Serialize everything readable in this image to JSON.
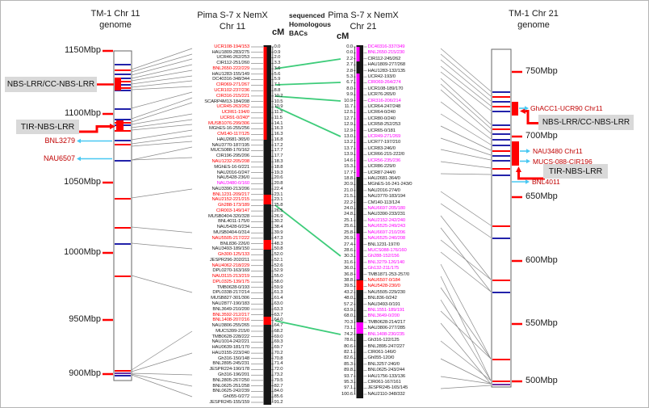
{
  "titles": {
    "left_genome": [
      "TM-1 Chr 11",
      "genome"
    ],
    "chr11": [
      "Pima S-7 x NemX",
      "Chr 11"
    ],
    "chr21": [
      "Pima S-7 x NemX",
      "Chr 21"
    ],
    "right_genome": [
      "TM-1 Chr 21",
      "genome"
    ],
    "green_note": [
      "sequenced",
      "Homologous",
      "BACs"
    ],
    "cm": "cM"
  },
  "left_scale_labels": [
    "1150Mbp",
    "1100Mbp",
    "1050Mbp",
    "1000Mbp",
    "950Mbp",
    "900Mbp"
  ],
  "right_scale_labels": [
    "750Mbp",
    "700Mbp",
    "650Mbp",
    "600Mbp",
    "550Mbp",
    "500Mbp"
  ],
  "annotations": {
    "left": {
      "nbs": "NBS-LRR/CC-NBS-LRR",
      "tir": "TIR-NBS-LRR",
      "bnl3279": "BNL3279",
      "nau6507": "NAU6507"
    },
    "right": {
      "ghacc1": "GhACC1-UCR90 Chr11",
      "nbs": "NBS-LRR/CC-NBS-LRR",
      "nau3480": "NAU3480 Chr11",
      "mucs088": "MUCS-088-CIR196",
      "tir": "TIR-NBS-LRR",
      "bnl4011": "BNL4011"
    }
  },
  "colors": {
    "red": "#FF0000",
    "magenta": "#FF00FF",
    "black": "#1A1A1A",
    "dark_red": "#C00000",
    "green": "#2FBE79",
    "cyan": "#49C8F2",
    "blue": "#2222AA",
    "purple": "#7030A0",
    "gray_line": "#8a8a8a"
  },
  "chr11_markers": [
    {
      "name": "UCR108-194/153",
      "cm": "0.0",
      "color": "red"
    },
    {
      "name": "HAU1809-283/275",
      "cm": "0.9",
      "color": "black"
    },
    {
      "name": "UCR46-262/253",
      "cm": "2.0",
      "color": "black"
    },
    {
      "name": "CIR112-251/260",
      "cm": "3.3",
      "color": "black"
    },
    {
      "name": "BNL2650-222/229",
      "cm": "3.6",
      "color": "red"
    },
    {
      "name": "HAU1283-155/149",
      "cm": "5.6",
      "color": "black"
    },
    {
      "name": "DC40316-348/344",
      "cm": "5.9",
      "color": "black"
    },
    {
      "name": "CIR069-271/267",
      "cm": "7.1",
      "color": "red"
    },
    {
      "name": "UCR102-237/236",
      "cm": "8.8",
      "color": "red"
    },
    {
      "name": "CIR316-215/221",
      "cm": "10.2",
      "color": "red"
    },
    {
      "name": "SCARP4M13-184/208",
      "cm": "10.5",
      "color": "black"
    },
    {
      "name": "UCR45-263/262",
      "cm": "10.9",
      "color": "red"
    },
    {
      "name": "UCR61-194/0",
      "cm": "11.3",
      "color": "red"
    },
    {
      "name": "UCR91-0/240*",
      "cm": "11.5",
      "color": "red"
    },
    {
      "name": "MUSB1076-299/306",
      "cm": "14.1",
      "color": "red"
    },
    {
      "name": "MGhES-16-255/256",
      "cm": "16.3",
      "color": "black"
    },
    {
      "name": "CM140-117/125",
      "cm": "16.3",
      "color": "red"
    },
    {
      "name": "HAU2681-365/0",
      "cm": "16.8",
      "color": "black"
    },
    {
      "name": "NAU3770-187/195",
      "cm": "17.2",
      "color": "black"
    },
    {
      "name": "MUCS088-170/162",
      "cm": "17.7",
      "color": "black"
    },
    {
      "name": "CIR196-295/206",
      "cm": "17.7",
      "color": "black"
    },
    {
      "name": "NAU1232-205/208",
      "cm": "18.3",
      "color": "red"
    },
    {
      "name": "MGhES-16-0/221",
      "cm": "18.8",
      "color": "black"
    },
    {
      "name": "NAU2016-0/247",
      "cm": "19.3",
      "color": "black"
    },
    {
      "name": "NAU5428-236/0",
      "cm": "20.6",
      "color": "black"
    },
    {
      "name": "NAU3480-0/160",
      "cm": "20.8",
      "color": "magenta"
    },
    {
      "name": "NAU3390-213/206",
      "cm": "22.4",
      "color": "black"
    },
    {
      "name": "BNL1231-209/217",
      "cm": "23.1",
      "color": "red"
    },
    {
      "name": "NAU2152-221/215",
      "cm": "23.1",
      "color": "red"
    },
    {
      "name": "Gh288-173/189",
      "cm": "25.8",
      "color": "red"
    },
    {
      "name": "CIR003-149/147",
      "cm": "26.5",
      "color": "red"
    },
    {
      "name": "MUSB0404-320/328",
      "cm": "26.9",
      "color": "black"
    },
    {
      "name": "BNL4011-175/0",
      "cm": "30.2",
      "color": "black"
    },
    {
      "name": "NAU5428-0/234",
      "cm": "38.4",
      "color": "black"
    },
    {
      "name": "MUSB0404-0/314",
      "cm": "39.9",
      "color": "black"
    },
    {
      "name": "NAU5505-217/222",
      "cm": "47.3",
      "color": "red"
    },
    {
      "name": "BNL836-226/0",
      "cm": "48.3",
      "color": "black"
    },
    {
      "name": "NAU3493-189/150",
      "cm": "50.8",
      "color": "black"
    },
    {
      "name": "Gh300-125/133",
      "cm": "52.0",
      "color": "red"
    },
    {
      "name": "JESPR296-202/211",
      "cm": "52.1",
      "color": "black"
    },
    {
      "name": "NAU4062-218/229",
      "cm": "52.6",
      "color": "red"
    },
    {
      "name": "DPL0270-163/169",
      "cm": "52.9",
      "color": "black"
    },
    {
      "name": "NAU3115-213/219",
      "cm": "55.0",
      "color": "red"
    },
    {
      "name": "DPL0325-139/175",
      "cm": "58.0",
      "color": "red"
    },
    {
      "name": "TMB0628-0/193",
      "cm": "59.9",
      "color": "black"
    },
    {
      "name": "DPL0338-217/214",
      "cm": "61.3",
      "color": "black"
    },
    {
      "name": "MUSB827-301/306",
      "cm": "61.4",
      "color": "black"
    },
    {
      "name": "NAU2877-190/183",
      "cm": "63.0",
      "color": "black"
    },
    {
      "name": "BNL3649-210/200",
      "cm": "63.3",
      "color": "black"
    },
    {
      "name": "BNL3592-212/217",
      "cm": "63.7",
      "color": "red"
    },
    {
      "name": "BNL1408-207/216",
      "cm": "64.0",
      "color": "red"
    },
    {
      "name": "NAU3806-255/265",
      "cm": "64.7",
      "color": "black"
    },
    {
      "name": "MUCS399-215/0",
      "cm": "68.2",
      "color": "black"
    },
    {
      "name": "TMB0628-228/222",
      "cm": "69.0",
      "color": "black"
    },
    {
      "name": "NAU1014-242/221",
      "cm": "69.3",
      "color": "black"
    },
    {
      "name": "HAU0639-181/170",
      "cm": "69.7",
      "color": "black"
    },
    {
      "name": "HAU3155-223/240",
      "cm": "70.2",
      "color": "black"
    },
    {
      "name": "Gh316-150/148",
      "cm": "70.8",
      "color": "black"
    },
    {
      "name": "BNL2895-245/231",
      "cm": "71.4",
      "color": "black"
    },
    {
      "name": "JESPR224-190/178",
      "cm": "72.0",
      "color": "black"
    },
    {
      "name": "Gh316-196/201",
      "cm": "73.2",
      "color": "black"
    },
    {
      "name": "BNL2805-267/250",
      "cm": "79.5",
      "color": "black"
    },
    {
      "name": "BNL0625-251/258",
      "cm": "82.7",
      "color": "black"
    },
    {
      "name": "BNL0625-242/239",
      "cm": "84.0",
      "color": "black"
    },
    {
      "name": "Gh055-0/272",
      "cm": "85.6",
      "color": "black"
    },
    {
      "name": "JESPR245-155/159",
      "cm": "91.2",
      "color": "black"
    }
  ],
  "chr21_markers": [
    {
      "name": "DC40316-337/349",
      "cm": "0.0",
      "color": "magenta"
    },
    {
      "name": "BNL2650-215/230",
      "cm": "0.0",
      "color": "magenta"
    },
    {
      "name": "CIR112-245/262",
      "cm": "2.2",
      "color": "black"
    },
    {
      "name": "HAU1809-277/268",
      "cm": "2.7",
      "color": "black"
    },
    {
      "name": "HAU1283-132/135",
      "cm": "2.8",
      "color": "black"
    },
    {
      "name": "UCR42-193/0",
      "cm": "5.3",
      "color": "black"
    },
    {
      "name": "CIR069-264/274",
      "cm": "6.7",
      "color": "magenta"
    },
    {
      "name": "UCR108-189/170",
      "cm": "8.0",
      "color": "black"
    },
    {
      "name": "UCR76-265/0",
      "cm": "9.9",
      "color": "black"
    },
    {
      "name": "CIR316-206/214",
      "cm": "10.9",
      "color": "magenta"
    },
    {
      "name": "UCR64-247/248",
      "cm": "11.7",
      "color": "black"
    },
    {
      "name": "UCR64-0/240",
      "cm": "12.5",
      "color": "black"
    },
    {
      "name": "UCR80-0/240",
      "cm": "12.7",
      "color": "black"
    },
    {
      "name": "UCR58-252/253",
      "cm": "12.9",
      "color": "black"
    },
    {
      "name": "UCR65-0/181",
      "cm": "12.9",
      "color": "black"
    },
    {
      "name": "UCR49-271/269",
      "cm": "13.0",
      "color": "magenta"
    },
    {
      "name": "UCR77-197/210",
      "cm": "13.2",
      "color": "black"
    },
    {
      "name": "UCR83-246/0",
      "cm": "13.7",
      "color": "black"
    },
    {
      "name": "UCR66-215-222/0",
      "cm": "13.9",
      "color": "black"
    },
    {
      "name": "UCR56-235/236",
      "cm": "14.6",
      "color": "magenta"
    },
    {
      "name": "UCR86-229/0",
      "cm": "15.3",
      "color": "black"
    },
    {
      "name": "UCR87-244/0",
      "cm": "17.7",
      "color": "black"
    },
    {
      "name": "HAU2681-364/0",
      "cm": "18.8",
      "color": "black"
    },
    {
      "name": "MGhES-16-241-243/0",
      "cm": "20.9",
      "color": "black"
    },
    {
      "name": "NAU2016-274/0",
      "cm": "21.0",
      "color": "black"
    },
    {
      "name": "NAU3770-183/194",
      "cm": "21.5",
      "color": "black"
    },
    {
      "name": "CM140-113/124",
      "cm": "22.2",
      "color": "black"
    },
    {
      "name": "NAU6697-205/180",
      "cm": "24.0",
      "color": "magenta"
    },
    {
      "name": "NAU3390-233/231",
      "cm": "24.8",
      "color": "black"
    },
    {
      "name": "NAU2152-242/240",
      "cm": "25.1",
      "color": "magenta"
    },
    {
      "name": "NAU6525-249/243",
      "cm": "25.6",
      "color": "magenta"
    },
    {
      "name": "NAU6697-210/206",
      "cm": "25.8",
      "color": "magenta"
    },
    {
      "name": "NAU6525-240/208",
      "cm": "26.9",
      "color": "magenta"
    },
    {
      "name": "BNL1231-197/0",
      "cm": "27.4",
      "color": "black"
    },
    {
      "name": "MUCS088-176/160",
      "cm": "28.6",
      "color": "magenta"
    },
    {
      "name": "Gh288-152/156",
      "cm": "30.3",
      "color": "magenta"
    },
    {
      "name": "BNL3279-126/140",
      "cm": "31.6",
      "color": "magenta"
    },
    {
      "name": "Gh132-211/175",
      "cm": "36.0",
      "color": "magenta"
    },
    {
      "name": "TMB1871-253-257/0",
      "cm": "36.8",
      "color": "black"
    },
    {
      "name": "NAU6507-0/184",
      "cm": "38.8",
      "color": "red"
    },
    {
      "name": "NAU5428-230/0",
      "cm": "39.5",
      "color": "red"
    },
    {
      "name": "NAU5505-229/230",
      "cm": "43.2",
      "color": "black"
    },
    {
      "name": "BNL836-0/242",
      "cm": "48.0",
      "color": "black"
    },
    {
      "name": "NAU3493-0/191",
      "cm": "57.2",
      "color": "black"
    },
    {
      "name": "BNL1551-189/191",
      "cm": "63.9",
      "color": "magenta"
    },
    {
      "name": "BNL3649-0/200",
      "cm": "68.0",
      "color": "magenta"
    },
    {
      "name": "TMB0628-214/217",
      "cm": "70.3",
      "color": "black"
    },
    {
      "name": "NAU3806-277/285",
      "cm": "73.1",
      "color": "black"
    },
    {
      "name": "BNL1408-230/235",
      "cm": "74.2",
      "color": "magenta"
    },
    {
      "name": "Gh316-122/125",
      "cm": "78.6",
      "color": "black"
    },
    {
      "name": "BNL2895-247/227",
      "cm": "80.6",
      "color": "black"
    },
    {
      "name": "CIR061-146/0",
      "cm": "82.1",
      "color": "black"
    },
    {
      "name": "Gh055-120/0",
      "cm": "82.6",
      "color": "black"
    },
    {
      "name": "BNL3257-240/0",
      "cm": "85.3",
      "color": "black"
    },
    {
      "name": "BNL0625-243/244",
      "cm": "89.8",
      "color": "black"
    },
    {
      "name": "HAU1756-133/136",
      "cm": "93.7",
      "color": "black"
    },
    {
      "name": "CIR061-167/161",
      "cm": "95.3",
      "color": "black"
    },
    {
      "name": "JESPR245-165/145",
      "cm": "97.1",
      "color": "black"
    },
    {
      "name": "NAU2110-348/332",
      "cm": "100.6",
      "color": "black"
    }
  ]
}
